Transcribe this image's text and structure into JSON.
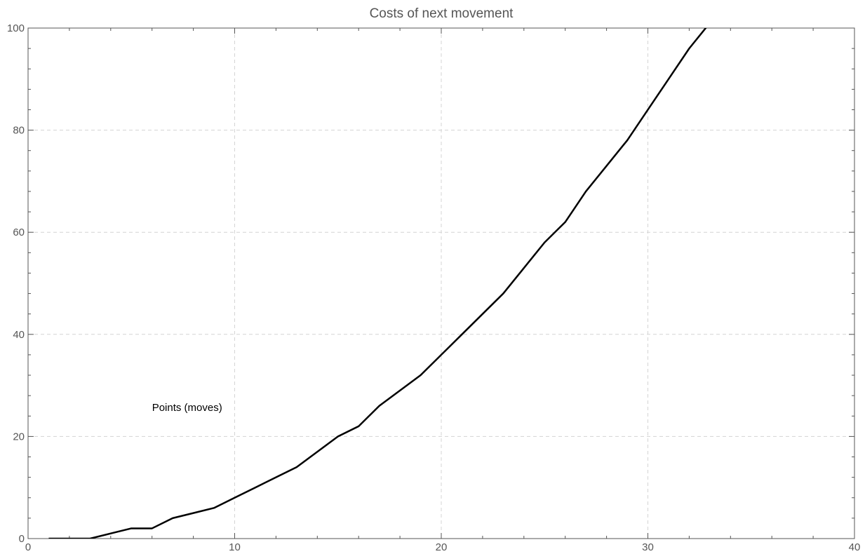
{
  "chart_data": {
    "type": "line",
    "title": "Costs of next movement",
    "xlabel": "",
    "ylabel": "",
    "xlim": [
      0,
      40
    ],
    "ylim": [
      0,
      100
    ],
    "x_ticks": [
      0,
      10,
      20,
      30,
      40
    ],
    "y_ticks": [
      0,
      20,
      40,
      60,
      80,
      100
    ],
    "grid": true,
    "annotations": [
      {
        "text": "Points (moves)",
        "x": 6,
        "y": 25
      }
    ],
    "series": [
      {
        "color": "#000000",
        "x": [
          1,
          2,
          3,
          4,
          5,
          6,
          7,
          8,
          9,
          10,
          11,
          12,
          13,
          14,
          15,
          16,
          17,
          18,
          19,
          20,
          21,
          22,
          23,
          24,
          25,
          26,
          27,
          28,
          29,
          30,
          31,
          32,
          33
        ],
        "y": [
          0,
          0,
          0,
          1,
          2,
          2,
          4,
          5,
          6,
          8,
          10,
          12,
          14,
          17,
          20,
          22,
          26,
          29,
          32,
          36,
          40,
          44,
          48,
          53,
          58,
          62,
          68,
          73,
          78,
          84,
          90,
          96,
          101
        ]
      }
    ]
  },
  "colors": {
    "grid": "#d4d4d4",
    "axis": "#555555",
    "line": "#000000"
  }
}
